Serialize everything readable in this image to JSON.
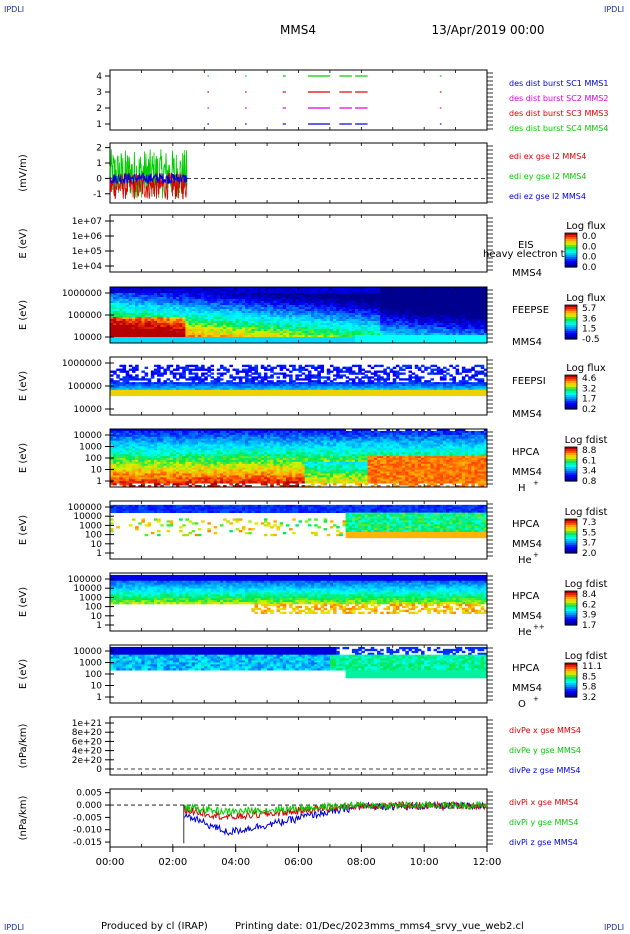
{
  "header": {
    "spacecraft": "MMS4",
    "date": "13/Apr/2019 00:00"
  },
  "corner_label": "IPDLI",
  "footer": {
    "producer": "Produced by cl (IRAP)",
    "printing": "Printing date: 01/Dec/2023",
    "file": "mms_mms4_srvy_vue_web2.cl"
  },
  "colors": {
    "blue": "#0000dd",
    "green": "#00cc00",
    "red": "#dd0000",
    "magenta": "#dd00dd"
  },
  "chart_data": [
    {
      "type": "line",
      "panel": "burst",
      "y_ticks": [
        "1",
        "2",
        "3",
        "4"
      ],
      "series": [
        {
          "name": "des dist burst SC1 MMS1",
          "color": "#0000dd"
        },
        {
          "name": "des dist burst SC2 MMS2",
          "color": "#dd00dd"
        },
        {
          "name": "des dist burst SC3 MMS3",
          "color": "#dd0000"
        },
        {
          "name": "des dist burst SC4 MMS4",
          "color": "#00cc00"
        }
      ],
      "intervals_hours": [
        [
          3.1,
          3.15
        ],
        [
          4.3,
          4.35
        ],
        [
          5.5,
          5.6
        ],
        [
          6.3,
          7.0
        ],
        [
          7.3,
          7.7
        ],
        [
          7.8,
          8.2
        ],
        [
          10.5,
          10.55
        ]
      ]
    },
    {
      "type": "line",
      "panel": "edi",
      "ylabel": "(mV/m)",
      "y_ticks": [
        "2",
        "1",
        "0",
        "-1"
      ],
      "ylim": [
        -1.6,
        2.3
      ],
      "series": [
        {
          "name": "edi ex gse l2 MMS4",
          "color": "#dd0000"
        },
        {
          "name": "edi ey gse l2 MMS4",
          "color": "#00cc00"
        },
        {
          "name": "edi ez gse l2 MMS4",
          "color": "#0000dd"
        }
      ],
      "x_range_hours": [
        0,
        2.45
      ]
    },
    {
      "type": "heatmap",
      "panel": "eis",
      "ylabel": "E (eV)",
      "y_ticks": [
        "1e+07",
        "1e+06",
        "1e+05",
        "1e+04"
      ],
      "instrument": "EIS",
      "spacecraft": "MMS4",
      "overlap_text": "heavy electron t",
      "colorbar": {
        "title": "Log flux",
        "labels": [
          "0.0",
          "0.0",
          "0.0",
          "0.0"
        ]
      }
    },
    {
      "type": "heatmap",
      "panel": "feepse",
      "ylabel": "E (eV)",
      "y_ticks": [
        "1000000",
        "100000",
        "10000"
      ],
      "instrument": "FEEPSE",
      "spacecraft": "MMS4",
      "colorbar": {
        "title": "Log flux",
        "labels": [
          "5.7",
          "3.6",
          "1.5",
          "-0.5"
        ]
      }
    },
    {
      "type": "heatmap",
      "panel": "feepsi",
      "ylabel": "E (eV)",
      "y_ticks": [
        "1000000",
        "100000",
        "10000"
      ],
      "instrument": "FEEPSI",
      "spacecraft": "MMS4",
      "colorbar": {
        "title": "Log flux",
        "labels": [
          "4.6",
          "3.2",
          "1.7",
          "0.2"
        ]
      }
    },
    {
      "type": "heatmap",
      "panel": "hpca_h",
      "ylabel": "E (eV)",
      "y_ticks": [
        "10000",
        "1000",
        "100",
        "10",
        "1"
      ],
      "instrument": "HPCA",
      "spacecraft": "MMS4",
      "species": "H",
      "species_sup": "+",
      "colorbar": {
        "title": "Log fdist",
        "labels": [
          "8.8",
          "6.1",
          "3.4",
          "0.8"
        ]
      }
    },
    {
      "type": "heatmap",
      "panel": "hpca_he",
      "ylabel": "E (eV)",
      "y_ticks": [
        "100000",
        "10000",
        "1000",
        "100",
        "10",
        "1"
      ],
      "instrument": "HPCA",
      "spacecraft": "MMS4",
      "species": "He",
      "species_sup": "+",
      "colorbar": {
        "title": "Log fdist",
        "labels": [
          "7.3",
          "5.5",
          "3.7",
          "2.0"
        ]
      }
    },
    {
      "type": "heatmap",
      "panel": "hpca_hepp",
      "ylabel": "E (eV)",
      "y_ticks": [
        "100000",
        "10000",
        "1000",
        "100",
        "10",
        "1"
      ],
      "instrument": "HPCA",
      "spacecraft": "MMS4",
      "species": "He",
      "species_sup": "++",
      "colorbar": {
        "title": "Log fdist",
        "labels": [
          "8.4",
          "6.2",
          "3.9",
          "1.7"
        ]
      }
    },
    {
      "type": "heatmap",
      "panel": "hpca_o",
      "ylabel": "E (eV)",
      "y_ticks": [
        "10000",
        "1000",
        "100",
        "10",
        "1"
      ],
      "instrument": "HPCA",
      "spacecraft": "MMS4",
      "species": "O",
      "species_sup": "+",
      "colorbar": {
        "title": "Log fdist",
        "labels": [
          "11.1",
          "8.5",
          "5.8",
          "3.2"
        ]
      }
    },
    {
      "type": "line",
      "panel": "divpe",
      "ylabel": "(nPa/km)",
      "y_ticks": [
        "1e+21",
        "8e+20",
        "6e+20",
        "4e+20",
        "2e+20",
        "0"
      ],
      "series": [
        {
          "name": "divPe x gse MMS4",
          "color": "#dd0000"
        },
        {
          "name": "divPe y gse MMS4",
          "color": "#00cc00"
        },
        {
          "name": "divPe z gse MMS4",
          "color": "#0000dd"
        }
      ]
    },
    {
      "type": "line",
      "panel": "divpi",
      "ylabel": "(nPa/km)",
      "y_ticks": [
        "0.005",
        "0.000",
        "-0.005",
        "-0.010",
        "-0.015"
      ],
      "ylim": [
        -0.017,
        0.0065
      ],
      "series": [
        {
          "name": "divPi x gse MMS4",
          "color": "#dd0000"
        },
        {
          "name": "divPi y gse MMS4",
          "color": "#00cc00"
        },
        {
          "name": "divPi z gse MMS4",
          "color": "#0000dd"
        }
      ]
    }
  ],
  "x_axis": {
    "ticks": [
      "00:00",
      "02:00",
      "04:00",
      "06:00",
      "08:00",
      "10:00",
      "12:00"
    ],
    "range_hours": [
      0,
      12
    ]
  }
}
